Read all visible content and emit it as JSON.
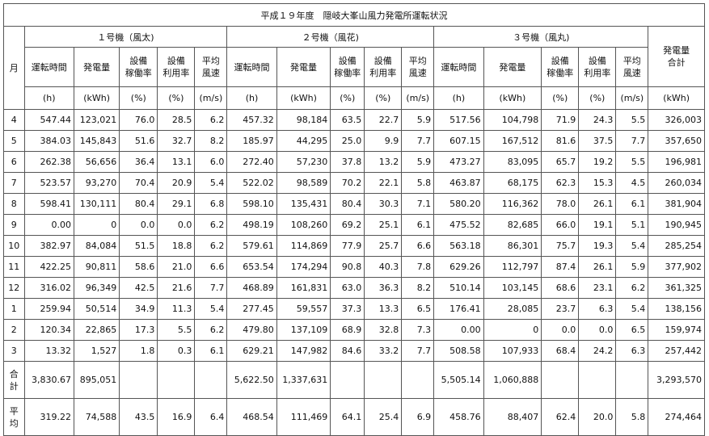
{
  "title": "平成１９年度　隠岐大峯山風力発電所運転状況",
  "month_header": "月",
  "units": [
    {
      "name": "１号機（風太)"
    },
    {
      "name": "２号機（風花)"
    },
    {
      "name": "３号機（風丸)"
    }
  ],
  "total_header": [
    "発電量",
    "合計"
  ],
  "sub_headers": [
    [
      "運転時間"
    ],
    [
      "発電量"
    ],
    [
      "設備",
      "稼働率"
    ],
    [
      "設備",
      "利用率"
    ],
    [
      "平均",
      "風速"
    ]
  ],
  "unit_labels": [
    "(h)",
    "(kWh)",
    "(%)",
    "(%)",
    "(m/s)"
  ],
  "total_unit": "(kWh)",
  "rows": [
    {
      "month": "4",
      "u1": [
        "547.44",
        "123,021",
        "76.0",
        "28.5",
        "6.2"
      ],
      "u2": [
        "457.32",
        "98,184",
        "63.5",
        "22.7",
        "5.9"
      ],
      "u3": [
        "517.56",
        "104,798",
        "71.9",
        "24.3",
        "5.5"
      ],
      "total": "326,003"
    },
    {
      "month": "5",
      "u1": [
        "384.03",
        "145,843",
        "51.6",
        "32.7",
        "8.2"
      ],
      "u2": [
        "185.97",
        "44,295",
        "25.0",
        "9.9",
        "7.7"
      ],
      "u3": [
        "607.15",
        "167,512",
        "81.6",
        "37.5",
        "7.7"
      ],
      "total": "357,650"
    },
    {
      "month": "6",
      "u1": [
        "262.38",
        "56,656",
        "36.4",
        "13.1",
        "6.0"
      ],
      "u2": [
        "272.40",
        "57,230",
        "37.8",
        "13.2",
        "5.9"
      ],
      "u3": [
        "473.27",
        "83,095",
        "65.7",
        "19.2",
        "5.5"
      ],
      "total": "196,981"
    },
    {
      "month": "7",
      "u1": [
        "523.57",
        "93,270",
        "70.4",
        "20.9",
        "5.4"
      ],
      "u2": [
        "522.02",
        "98,589",
        "70.2",
        "22.1",
        "5.8"
      ],
      "u3": [
        "463.87",
        "68,175",
        "62.3",
        "15.3",
        "4.5"
      ],
      "total": "260,034"
    },
    {
      "month": "8",
      "u1": [
        "598.41",
        "130,111",
        "80.4",
        "29.1",
        "6.8"
      ],
      "u2": [
        "598.10",
        "135,431",
        "80.4",
        "30.3",
        "7.1"
      ],
      "u3": [
        "580.20",
        "116,362",
        "78.0",
        "26.1",
        "6.1"
      ],
      "total": "381,904"
    },
    {
      "month": "9",
      "u1": [
        "0.00",
        "0",
        "0.0",
        "0.0",
        "6.2"
      ],
      "u2": [
        "498.19",
        "108,260",
        "69.2",
        "25.1",
        "6.1"
      ],
      "u3": [
        "475.52",
        "82,685",
        "66.0",
        "19.1",
        "5.1"
      ],
      "total": "190,945"
    },
    {
      "month": "10",
      "u1": [
        "382.97",
        "84,084",
        "51.5",
        "18.8",
        "6.2"
      ],
      "u2": [
        "579.61",
        "114,869",
        "77.9",
        "25.7",
        "6.6"
      ],
      "u3": [
        "563.18",
        "86,301",
        "75.7",
        "19.3",
        "5.4"
      ],
      "total": "285,254"
    },
    {
      "month": "11",
      "u1": [
        "422.25",
        "90,811",
        "58.6",
        "21.0",
        "6.6"
      ],
      "u2": [
        "653.54",
        "174,294",
        "90.8",
        "40.3",
        "7.8"
      ],
      "u3": [
        "629.26",
        "112,797",
        "87.4",
        "26.1",
        "5.9"
      ],
      "total": "377,902"
    },
    {
      "month": "12",
      "u1": [
        "316.02",
        "96,349",
        "42.5",
        "21.6",
        "7.7"
      ],
      "u2": [
        "468.89",
        "161,831",
        "63.0",
        "36.3",
        "8.2"
      ],
      "u3": [
        "510.14",
        "103,145",
        "68.6",
        "23.1",
        "6.2"
      ],
      "total": "361,325"
    },
    {
      "month": "1",
      "u1": [
        "259.94",
        "50,514",
        "34.9",
        "11.3",
        "5.4"
      ],
      "u2": [
        "277.45",
        "59,557",
        "37.3",
        "13.3",
        "6.5"
      ],
      "u3": [
        "176.41",
        "28,085",
        "23.7",
        "6.3",
        "5.4"
      ],
      "total": "138,156"
    },
    {
      "month": "2",
      "u1": [
        "120.34",
        "22,865",
        "17.3",
        "5.5",
        "6.2"
      ],
      "u2": [
        "479.80",
        "137,109",
        "68.9",
        "32.8",
        "7.3"
      ],
      "u3": [
        "0.00",
        "0",
        "0.0",
        "0.0",
        "6.5"
      ],
      "total": "159,974"
    },
    {
      "month": "3",
      "u1": [
        "13.32",
        "1,527",
        "1.8",
        "0.3",
        "6.1"
      ],
      "u2": [
        "629.21",
        "147,982",
        "84.6",
        "33.2",
        "7.7"
      ],
      "u3": [
        "508.58",
        "107,933",
        "68.4",
        "24.2",
        "6.3"
      ],
      "total": "257,442"
    }
  ],
  "sum_row": {
    "label": [
      "合",
      "計"
    ],
    "u1": [
      "3,830.67",
      "895,051",
      "",
      "",
      ""
    ],
    "u2": [
      "5,622.50",
      "1,337,631",
      "",
      "",
      ""
    ],
    "u3": [
      "5,505.14",
      "1,060,888",
      "",
      "",
      ""
    ],
    "total": "3,293,570"
  },
  "avg_row": {
    "label": [
      "平",
      "均"
    ],
    "u1": [
      "319.22",
      "74,588",
      "43.5",
      "16.9",
      "6.4"
    ],
    "u2": [
      "468.54",
      "111,469",
      "64.1",
      "25.4",
      "6.9"
    ],
    "u3": [
      "458.76",
      "88,407",
      "62.4",
      "20.0",
      "5.8"
    ],
    "total": "274,464"
  }
}
